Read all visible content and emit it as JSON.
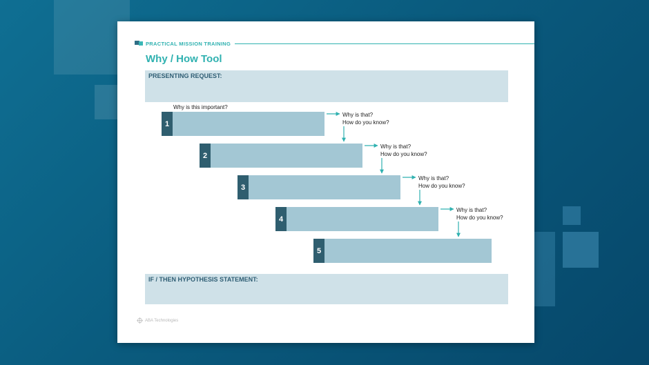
{
  "colors": {
    "accent": "#2fb1b0",
    "band": "#cfe1e8",
    "bar": "#a3c7d4",
    "number_tab": "#2f5e6f"
  },
  "header": {
    "label": "PRACTICAL MISSION TRAINING",
    "icon": "mission-logo-icon"
  },
  "title": "Why / How Tool",
  "presenting_request_label": "PRESENTING REQUEST:",
  "first_prompt": "Why is this important?",
  "steps": [
    {
      "number": "1",
      "q1": "Why is that?",
      "q2": "How do you know?"
    },
    {
      "number": "2",
      "q1": "Why is that?",
      "q2": "How do you know?"
    },
    {
      "number": "3",
      "q1": "Why is that?",
      "q2": "How do you know?"
    },
    {
      "number": "4",
      "q1": "Why is that?",
      "q2": "How do you know?"
    },
    {
      "number": "5"
    }
  ],
  "hypothesis_label": "IF / THEN HYPOTHESIS STATEMENT:",
  "footer": {
    "text": "ABA Technologies",
    "icon": "aba-logo-icon"
  }
}
